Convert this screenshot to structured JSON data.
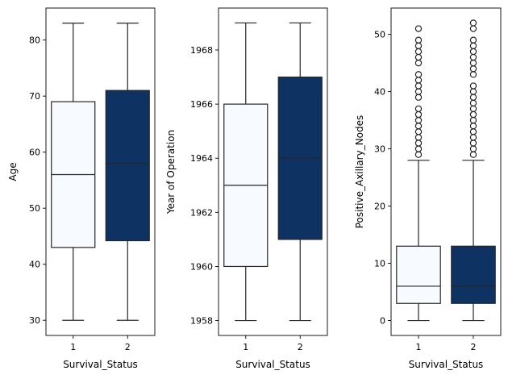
{
  "chart_data": [
    {
      "type": "box",
      "xlabel": "Survival_Status",
      "ylabel": "Age",
      "categories": [
        "1",
        "2"
      ],
      "ylim": [
        27.3,
        85.7
      ],
      "yticks": [
        30,
        40,
        50,
        60,
        70,
        80
      ],
      "grid": false,
      "colors": [
        "#f7fbff",
        "#0e3262"
      ],
      "boxes": [
        {
          "category": "1",
          "whisker_low": 30,
          "q1": 43,
          "median": 56,
          "q3": 69,
          "whisker_high": 83,
          "outliers": []
        },
        {
          "category": "2",
          "whisker_low": 30,
          "q1": 44.2,
          "median": 58,
          "q3": 71,
          "whisker_high": 83,
          "outliers": []
        }
      ]
    },
    {
      "type": "box",
      "xlabel": "Survival_Status",
      "ylabel": "Year of Operation",
      "categories": [
        "1",
        "2"
      ],
      "ylim": [
        1957.45,
        1969.55
      ],
      "yticks": [
        1958,
        1960,
        1962,
        1964,
        1966,
        1968
      ],
      "grid": false,
      "colors": [
        "#f7fbff",
        "#0e3262"
      ],
      "boxes": [
        {
          "category": "1",
          "whisker_low": 1958,
          "q1": 1960,
          "median": 1963,
          "q3": 1966,
          "whisker_high": 1969,
          "outliers": []
        },
        {
          "category": "2",
          "whisker_low": 1958,
          "q1": 1961,
          "median": 1964,
          "q3": 1967,
          "whisker_high": 1969,
          "outliers": []
        }
      ]
    },
    {
      "type": "box",
      "xlabel": "Survival_Status",
      "ylabel": "Positive_Axillary_Nodes",
      "categories": [
        "1",
        "2"
      ],
      "ylim": [
        -2.6,
        54.6
      ],
      "yticks": [
        0,
        10,
        20,
        30,
        40,
        50
      ],
      "grid": false,
      "colors": [
        "#f7fbff",
        "#0e3262"
      ],
      "boxes": [
        {
          "category": "1",
          "whisker_low": 0,
          "q1": 3,
          "median": 6,
          "q3": 13,
          "whisker_high": 28,
          "outliers": [
            29,
            30,
            31,
            32,
            33,
            34,
            35,
            36,
            37,
            39,
            40,
            41,
            42,
            43,
            45,
            46,
            47,
            48,
            49,
            51
          ]
        },
        {
          "category": "2",
          "whisker_low": 0,
          "q1": 3,
          "median": 6,
          "q3": 13,
          "whisker_high": 28,
          "outliers": [
            29,
            30,
            31,
            32,
            33,
            34,
            35,
            36,
            37,
            38,
            39,
            40,
            41,
            43,
            44,
            45,
            46,
            47,
            48,
            49,
            51,
            52
          ]
        }
      ]
    }
  ]
}
